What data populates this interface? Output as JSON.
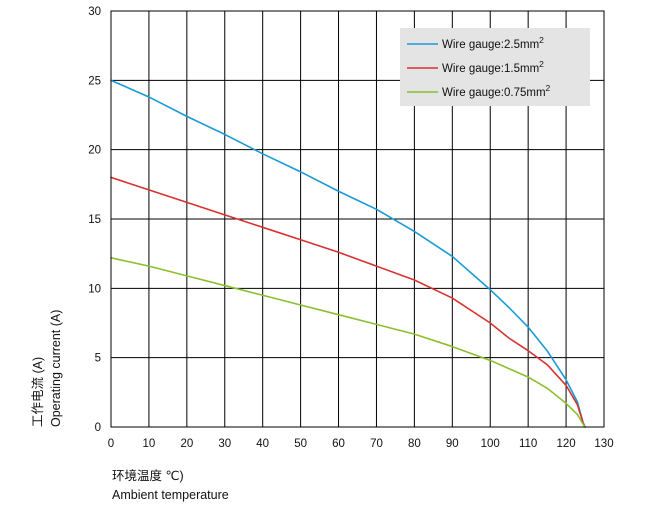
{
  "chart_data": {
    "type": "line",
    "xlabel": [
      "环境温度 ℃)",
      "Ambient temperature"
    ],
    "ylabel": [
      "工作电流 (A)",
      "Operating current (A)"
    ],
    "xlim": [
      0,
      130
    ],
    "ylim": [
      0,
      30
    ],
    "xticks": [
      "0",
      "10",
      "20",
      "30",
      "40",
      "50",
      "60",
      "70",
      "80",
      "90",
      "100",
      "110",
      "120",
      "130"
    ],
    "yticks": [
      "0",
      "5",
      "10",
      "15",
      "20",
      "25",
      "30"
    ],
    "grid": true,
    "legend_position": "top-right",
    "series": [
      {
        "name": "Wire gauge:2.5mm",
        "sup": "2",
        "color": "#1a9ad6",
        "points": [
          [
            0,
            25.0
          ],
          [
            10,
            23.8
          ],
          [
            20,
            22.4
          ],
          [
            30,
            21.1
          ],
          [
            40,
            19.7
          ],
          [
            50,
            18.4
          ],
          [
            60,
            17.0
          ],
          [
            70,
            15.7
          ],
          [
            80,
            14.1
          ],
          [
            90,
            12.3
          ],
          [
            100,
            9.9
          ],
          [
            105,
            8.6
          ],
          [
            110,
            7.2
          ],
          [
            115,
            5.5
          ],
          [
            120,
            3.4
          ],
          [
            123,
            1.8
          ],
          [
            124.5,
            0.3
          ],
          [
            125,
            0
          ]
        ]
      },
      {
        "name": "Wire gauge:1.5mm",
        "sup": "2",
        "color": "#d8312f",
        "points": [
          [
            0,
            18.0
          ],
          [
            10,
            17.1
          ],
          [
            20,
            16.2
          ],
          [
            30,
            15.3
          ],
          [
            40,
            14.4
          ],
          [
            50,
            13.5
          ],
          [
            60,
            12.6
          ],
          [
            70,
            11.6
          ],
          [
            80,
            10.6
          ],
          [
            90,
            9.3
          ],
          [
            100,
            7.5
          ],
          [
            105,
            6.4
          ],
          [
            110,
            5.5
          ],
          [
            115,
            4.5
          ],
          [
            120,
            3.0
          ],
          [
            123,
            1.6
          ],
          [
            124.5,
            0.3
          ],
          [
            125,
            0
          ]
        ]
      },
      {
        "name": "Wire gauge:0.75mm",
        "sup": "2",
        "color": "#8cbf2e",
        "points": [
          [
            0,
            12.2
          ],
          [
            10,
            11.6
          ],
          [
            20,
            10.9
          ],
          [
            30,
            10.2
          ],
          [
            40,
            9.5
          ],
          [
            50,
            8.8
          ],
          [
            60,
            8.1
          ],
          [
            70,
            7.4
          ],
          [
            80,
            6.7
          ],
          [
            90,
            5.8
          ],
          [
            100,
            4.8
          ],
          [
            105,
            4.2
          ],
          [
            110,
            3.6
          ],
          [
            115,
            2.8
          ],
          [
            120,
            1.7
          ],
          [
            123,
            0.9
          ],
          [
            124.5,
            0.2
          ],
          [
            125,
            0
          ]
        ]
      }
    ]
  }
}
